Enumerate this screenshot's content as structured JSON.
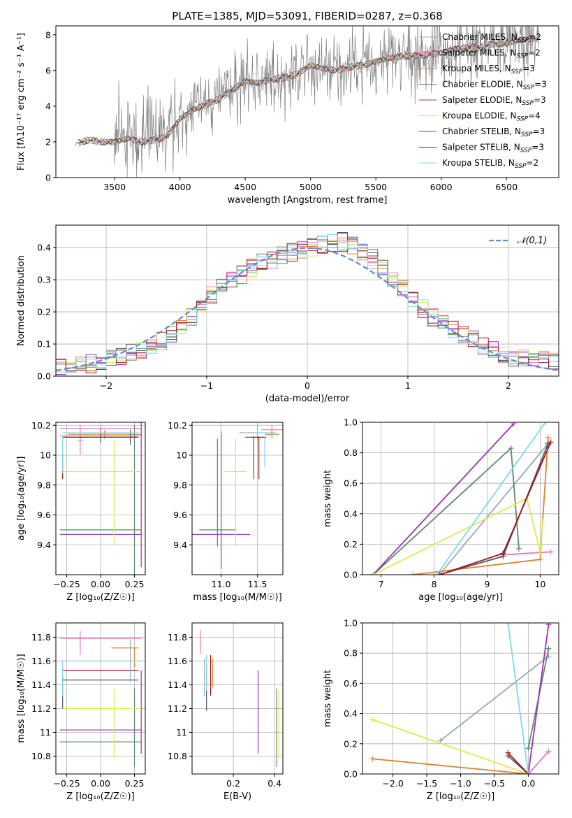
{
  "figure": {
    "title": "PLATE=1385, MJD=53091, FIBERID=0287, z=0.368"
  },
  "series_styles": [
    {
      "name": "Chabrier MILES",
      "nssp": "2",
      "color": "#9aa7b8"
    },
    {
      "name": "Salpeter MILES",
      "nssp": "2",
      "color": "#e377c2"
    },
    {
      "name": "Kroupa MILES",
      "nssp": "3",
      "color": "#e08030"
    },
    {
      "name": "Chabrier ELODIE",
      "nssp": "3",
      "color": "#5a8a6a"
    },
    {
      "name": "Salpeter ELODIE",
      "nssp": "3",
      "color": "#9b30b8"
    },
    {
      "name": "Kroupa ELODIE",
      "nssp": "4",
      "color": "#d8ec50"
    },
    {
      "name": "Chabrier STELIB",
      "nssp": "3",
      "color": "#505860"
    },
    {
      "name": "Salpeter STELIB",
      "nssp": "3",
      "color": "#a01818"
    },
    {
      "name": "Kroupa STELIB",
      "nssp": "2",
      "color": "#80d8e8"
    }
  ],
  "chart_data": [
    {
      "id": "spectrum",
      "type": "line",
      "xlabel": "wavelength [Angstrom, rest frame]",
      "ylabel": "Flux [fλ10⁻¹⁷ erg cm⁻² s⁻¹ A⁻¹]",
      "xlim": [
        3050,
        6900
      ],
      "ylim": [
        0,
        8.5
      ],
      "xticks": [
        3500,
        4000,
        4500,
        5000,
        5500,
        6000,
        6500
      ],
      "yticks": [
        0,
        2,
        4,
        6,
        8
      ],
      "data_color": "#808080",
      "model_continuum": {
        "x": [
          3200,
          3300,
          3400,
          3500,
          3600,
          3700,
          3800,
          3900,
          4000,
          4100,
          4200,
          4300,
          4400,
          4500,
          4600,
          4700,
          4800,
          4900,
          5000,
          5100,
          5200,
          5300,
          5400,
          5500,
          5600,
          5700,
          5800,
          5900,
          6000,
          6100,
          6200,
          6300,
          6400,
          6500,
          6600,
          6700
        ],
        "y": [
          1.9,
          2.1,
          2.0,
          2.0,
          2.2,
          2.0,
          2.1,
          2.3,
          3.3,
          3.8,
          4.1,
          4.4,
          4.9,
          5.4,
          5.3,
          5.5,
          5.6,
          5.8,
          6.3,
          6.1,
          6.0,
          6.2,
          6.3,
          6.5,
          6.7,
          6.8,
          6.8,
          6.9,
          7.0,
          7.2,
          7.3,
          7.3,
          7.5,
          7.5,
          7.7,
          7.8
        ]
      },
      "legend_loc": "upper right"
    },
    {
      "id": "residuals",
      "type": "histogram",
      "xlabel": "(data-model)/error",
      "ylabel": "Normed distribution",
      "xlim": [
        -2.5,
        2.5
      ],
      "ylim": [
        0,
        0.47
      ],
      "xticks": [
        -2,
        -1,
        0,
        1,
        2
      ],
      "yticks": [
        0.0,
        0.1,
        0.2,
        0.3,
        0.4
      ],
      "grid": true,
      "bin_width": 0.1,
      "reference_curve": {
        "label": "𝒩(0,1)",
        "color": "#5f8bd8",
        "style": "dashed"
      },
      "histogram_envelope": {
        "x": [
          -2.5,
          -2.0,
          -1.5,
          -1.2,
          -1.0,
          -0.5,
          0.0,
          0.4,
          0.6,
          1.0,
          1.2,
          1.6,
          2.0,
          2.5
        ],
        "y": [
          0.025,
          0.045,
          0.1,
          0.17,
          0.24,
          0.35,
          0.4,
          0.42,
          0.38,
          0.26,
          0.19,
          0.12,
          0.06,
          0.05
        ]
      },
      "legend_loc": "upper right"
    },
    {
      "id": "age_vs_Z",
      "type": "errorbar",
      "xlabel": "Z [log₁₀(Z/Z☉)]",
      "ylabel": "age  [log₁₀(age/yr)]",
      "xlim": [
        -0.33,
        0.33
      ],
      "ylim": [
        9.2,
        10.22
      ],
      "xticks": [
        -0.25,
        0.0,
        0.25
      ],
      "xticklabels": [
        "−0.25",
        "0.00",
        "0.25"
      ],
      "yticks": [
        9.4,
        9.6,
        9.8,
        10.0,
        10.2
      ],
      "grid": true,
      "points": [
        {
          "series": 0,
          "x": 0.0,
          "y": 10.13,
          "xe": 0.3,
          "ye": 0.05
        },
        {
          "series": 1,
          "x": 0.0,
          "y": 10.18,
          "xe": 0.3,
          "ye": 0.02
        },
        {
          "series": 1,
          "x": -0.15,
          "y": 10.1,
          "xe": 0.02,
          "ye": 0.1
        },
        {
          "series": 2,
          "x": 0.03,
          "y": 10.14,
          "xe": 0.27,
          "ye": 0.03
        },
        {
          "series": 3,
          "x": 0.0,
          "y": 9.5,
          "xe": 0.3,
          "ye": 0.0
        },
        {
          "series": 3,
          "x": 0.25,
          "y": 9.7,
          "xe": 0.0,
          "ye": 0.5
        },
        {
          "series": 4,
          "x": 0.0,
          "y": 9.47,
          "xe": 0.3,
          "ye": 0.0
        },
        {
          "series": 4,
          "x": 0.3,
          "y": 9.75,
          "xe": 0.0,
          "ye": 0.5
        },
        {
          "series": 5,
          "x": 0.0,
          "y": 9.89,
          "xe": 0.3,
          "ye": 0.0
        },
        {
          "series": 5,
          "x": 0.1,
          "y": 9.75,
          "xe": 0.0,
          "ye": 0.35
        },
        {
          "series": 6,
          "x": 0.0,
          "y": 10.12,
          "xe": 0.28,
          "ye": 0.04
        },
        {
          "series": 6,
          "x": 0.22,
          "y": 10.12,
          "xe": 0.0,
          "ye": 0.05
        },
        {
          "series": 7,
          "x": 0.0,
          "y": 10.12,
          "xe": 0.28,
          "ye": 0.0
        },
        {
          "series": 7,
          "x": -0.28,
          "y": 9.92,
          "xe": 0.0,
          "ye": 0.08
        },
        {
          "series": 8,
          "x": 0.0,
          "y": 10.15,
          "xe": 0.28,
          "ye": 0.0
        },
        {
          "series": 8,
          "x": -0.28,
          "y": 10.0,
          "xe": 0.0,
          "ye": 0.12
        }
      ]
    },
    {
      "id": "age_vs_mass",
      "type": "errorbar",
      "xlabel": "mass [log₁₀(M/M☉)]",
      "xlim": [
        10.6,
        11.85
      ],
      "ylim": [
        9.2,
        10.22
      ],
      "xticks": [
        11.0,
        11.5
      ],
      "xticklabels": [
        "11.0",
        "11.5"
      ],
      "yticks": [
        9.4,
        9.6,
        9.8,
        10.0,
        10.2
      ],
      "grid": true,
      "points": [
        {
          "series": 0,
          "x": 11.5,
          "y": 10.15,
          "xe": 0.25,
          "ye": 0.05
        },
        {
          "series": 1,
          "x": 11.7,
          "y": 10.17,
          "xe": 0.15,
          "ye": 0.03
        },
        {
          "series": 2,
          "x": 11.7,
          "y": 10.14,
          "xe": 0.1,
          "ye": 0.03
        },
        {
          "series": 3,
          "x": 10.95,
          "y": 9.5,
          "xe": 0.25,
          "ye": 0.0
        },
        {
          "series": 3,
          "x": 10.95,
          "y": 9.75,
          "xe": 0.0,
          "ye": 0.36
        },
        {
          "series": 4,
          "x": 11.0,
          "y": 9.47,
          "xe": 0.4,
          "ye": 0.0
        },
        {
          "series": 4,
          "x": 11.0,
          "y": 9.7,
          "xe": 0.0,
          "ye": 0.46
        },
        {
          "series": 5,
          "x": 11.2,
          "y": 9.89,
          "xe": 0.15,
          "ye": 0.0
        },
        {
          "series": 5,
          "x": 11.2,
          "y": 9.75,
          "xe": 0.0,
          "ye": 0.36
        },
        {
          "series": 6,
          "x": 11.45,
          "y": 10.12,
          "xe": 0.12,
          "ye": 0.0
        },
        {
          "series": 6,
          "x": 11.45,
          "y": 9.98,
          "xe": 0.0,
          "ye": 0.14
        },
        {
          "series": 7,
          "x": 11.52,
          "y": 10.12,
          "xe": 0.1,
          "ye": 0.0
        },
        {
          "series": 7,
          "x": 11.52,
          "y": 9.98,
          "xe": 0.0,
          "ye": 0.14
        },
        {
          "series": 8,
          "x": 11.6,
          "y": 10.15,
          "xe": 0.15,
          "ye": 0.0
        },
        {
          "series": 8,
          "x": 11.6,
          "y": 10.02,
          "xe": 0.0,
          "ye": 0.1
        }
      ]
    },
    {
      "id": "weight_vs_age",
      "type": "line",
      "xlabel": "age  [log₁₀(age/yr)]",
      "ylabel": "mass weight",
      "xlim": [
        6.65,
        10.35
      ],
      "ylim": [
        0,
        1
      ],
      "xticks": [
        7,
        8,
        9,
        10
      ],
      "yticks": [
        0.0,
        0.2,
        0.4,
        0.6,
        0.8,
        1.0
      ],
      "grid": true,
      "series_points": [
        {
          "series": 0,
          "x": [
            8.1,
            10.15
          ],
          "y": [
            0.0,
            0.86
          ]
        },
        {
          "series": 1,
          "x": [
            9.3,
            10.2
          ],
          "y": [
            0.13,
            0.15
          ]
        },
        {
          "series": 2,
          "x": [
            7.6,
            10.0,
            10.15
          ],
          "y": [
            0.0,
            0.1,
            0.9
          ]
        },
        {
          "series": 3,
          "x": [
            6.85,
            9.45,
            9.6
          ],
          "y": [
            0.0,
            0.83,
            0.17
          ]
        },
        {
          "series": 4,
          "x": [
            6.85,
            9.5
          ],
          "y": [
            0.0,
            0.99
          ]
        },
        {
          "series": 5,
          "x": [
            6.85,
            9.75,
            10.0,
            10.05
          ],
          "y": [
            0.0,
            0.5,
            0.15,
            0.35
          ]
        },
        {
          "series": 6,
          "x": [
            8.1,
            9.3,
            10.15
          ],
          "y": [
            0.0,
            0.12,
            0.86
          ]
        },
        {
          "series": 7,
          "x": [
            8.1,
            9.3,
            10.2
          ],
          "y": [
            0.0,
            0.14,
            0.87
          ]
        },
        {
          "series": 8,
          "x": [
            8.05,
            10.1
          ],
          "y": [
            0.0,
            1.0
          ]
        }
      ]
    },
    {
      "id": "mass_vs_Z",
      "type": "errorbar",
      "xlabel": "Z [log₁₀(Z/Z☉)]",
      "ylabel": "mass [log₁₀(M/M☉)]",
      "xlim": [
        -0.33,
        0.33
      ],
      "ylim": [
        10.65,
        11.92
      ],
      "xticks": [
        -0.25,
        0.0,
        0.25
      ],
      "xticklabels": [
        "−0.25",
        "0.00",
        "0.25"
      ],
      "yticks": [
        10.8,
        11.0,
        11.2,
        11.4,
        11.6,
        11.8
      ],
      "grid": true,
      "points": [
        {
          "series": 0,
          "x": 0.0,
          "y": 11.6,
          "xe": 0.3,
          "ye": 0.0
        },
        {
          "series": 1,
          "x": 0.0,
          "y": 11.79,
          "xe": 0.3,
          "ye": 0.0
        },
        {
          "series": 1,
          "x": -0.15,
          "y": 11.75,
          "xe": 0.0,
          "ye": 0.1
        },
        {
          "series": 2,
          "x": 0.18,
          "y": 11.71,
          "xe": 0.1,
          "ye": 0.0
        },
        {
          "series": 2,
          "x": 0.25,
          "y": 11.63,
          "xe": 0.0,
          "ye": 0.08
        },
        {
          "series": 3,
          "x": 0.0,
          "y": 10.92,
          "xe": 0.3,
          "ye": 0.0
        },
        {
          "series": 3,
          "x": 0.25,
          "y": 11.04,
          "xe": 0.0,
          "ye": 0.33
        },
        {
          "series": 4,
          "x": 0.0,
          "y": 11.02,
          "xe": 0.3,
          "ye": 0.0
        },
        {
          "series": 4,
          "x": 0.3,
          "y": 11.17,
          "xe": 0.0,
          "ye": 0.35
        },
        {
          "series": 5,
          "x": 0.0,
          "y": 11.2,
          "xe": 0.3,
          "ye": 0.0
        },
        {
          "series": 5,
          "x": 0.1,
          "y": 11.07,
          "xe": 0.0,
          "ye": 0.29
        },
        {
          "series": 6,
          "x": 0.0,
          "y": 11.44,
          "xe": 0.28,
          "ye": 0.0
        },
        {
          "series": 6,
          "x": -0.28,
          "y": 11.34,
          "xe": 0.0,
          "ye": 0.14
        },
        {
          "series": 7,
          "x": 0.0,
          "y": 11.52,
          "xe": 0.28,
          "ye": 0.0
        },
        {
          "series": 8,
          "x": 0.0,
          "y": 11.6,
          "xe": 0.28,
          "ye": 0.0
        },
        {
          "series": 8,
          "x": -0.28,
          "y": 11.45,
          "xe": 0.0,
          "ye": 0.15
        },
        {
          "series": 0,
          "x": 0.22,
          "y": 11.6,
          "xe": 0.0,
          "ye": 0.18
        }
      ]
    },
    {
      "id": "mass_vs_ebv",
      "type": "errorbar",
      "xlabel": "E(B-V)",
      "xlim": [
        0.0,
        0.44
      ],
      "ylim": [
        10.65,
        11.92
      ],
      "xticks": [
        0.2,
        0.4
      ],
      "xticklabels": [
        "0.2",
        "0.4"
      ],
      "yticks": [
        10.8,
        11.0,
        11.2,
        11.4,
        11.6,
        11.8
      ],
      "grid": true,
      "points": [
        {
          "series": 0,
          "x": 0.06,
          "y": 11.46,
          "xe": 0.0,
          "ye": 0.16
        },
        {
          "series": 1,
          "x": 0.04,
          "y": 11.76,
          "xe": 0.0,
          "ye": 0.1
        },
        {
          "series": 2,
          "x": 0.1,
          "y": 11.5,
          "xe": 0.0,
          "ye": 0.12
        },
        {
          "series": 3,
          "x": 0.41,
          "y": 11.04,
          "xe": 0.0,
          "ye": 0.33
        },
        {
          "series": 4,
          "x": 0.32,
          "y": 11.17,
          "xe": 0.0,
          "ye": 0.35
        },
        {
          "series": 5,
          "x": 0.42,
          "y": 11.07,
          "xe": 0.0,
          "ye": 0.29
        },
        {
          "series": 6,
          "x": 0.07,
          "y": 11.36,
          "xe": 0.0,
          "ye": 0.18
        },
        {
          "series": 7,
          "x": 0.09,
          "y": 11.48,
          "xe": 0.0,
          "ye": 0.17
        },
        {
          "series": 8,
          "x": 0.07,
          "y": 11.5,
          "xe": 0.0,
          "ye": 0.15
        }
      ]
    },
    {
      "id": "weight_vs_Z",
      "type": "line",
      "xlabel": "Z [log₁₀(Z/Z☉)]",
      "ylabel": "mass weight",
      "xlim": [
        -2.45,
        0.45
      ],
      "ylim": [
        0,
        1
      ],
      "xticks": [
        -2.0,
        -1.5,
        -1.0,
        -0.5,
        0.0
      ],
      "xticklabels": [
        "−2.0",
        "−1.5",
        "−1.0",
        "−0.5",
        "0.0"
      ],
      "yticks": [
        0.0,
        0.2,
        0.4,
        0.6,
        0.8,
        1.0
      ],
      "grid": true,
      "series_points": [
        {
          "series": 0,
          "x": -1.3,
          "y": 0.22,
          "x2": 0.3,
          "y2": 0.78
        },
        {
          "series": 1,
          "x": 0.0,
          "y": 0.0,
          "x2": 0.3,
          "y2": 0.15
        },
        {
          "series": 2,
          "x": -2.3,
          "y": 0.1,
          "x2": 0.0,
          "y2": 0.0
        },
        {
          "series": 3,
          "x": 0.0,
          "y": 0.17,
          "x2": 0.3,
          "y2": 0.83
        },
        {
          "series": 4,
          "x": 0.0,
          "y": 0.0,
          "x2": 0.3,
          "y2": 0.99
        },
        {
          "series": 5,
          "x": -2.3,
          "y": 0.36,
          "x2": 0.0,
          "y2": 0.0
        },
        {
          "series": 6,
          "x": -0.3,
          "y": 0.12,
          "x2": 0.0,
          "y2": 0.0
        },
        {
          "series": 7,
          "x": -0.3,
          "y": 0.14,
          "x2": 0.0,
          "y2": 0.0
        },
        {
          "series": 8,
          "x": -0.3,
          "y": 1.0,
          "x2": 0.0,
          "y2": 0.0
        }
      ]
    }
  ]
}
